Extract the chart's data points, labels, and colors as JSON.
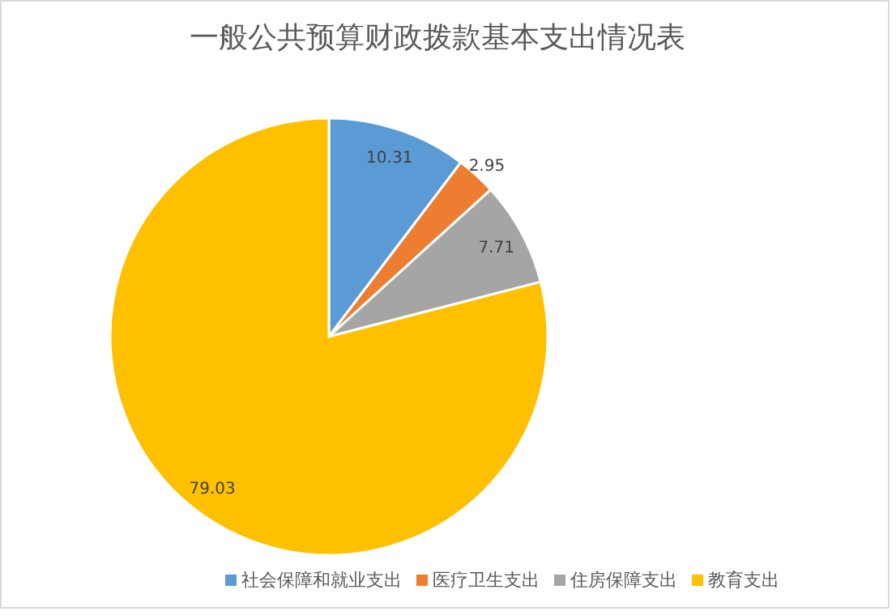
{
  "chart_data": {
    "type": "pie",
    "title": "一般公共预算财政拨款基本支出情况表",
    "categories": [
      "社会保障和就业支出",
      "医疗卫生支出",
      "住房保障支出",
      "教育支出"
    ],
    "values": [
      10.31,
      2.95,
      7.71,
      79.03
    ],
    "colors": [
      "#5b9bd5",
      "#ed7d31",
      "#a5a5a5",
      "#ffc000"
    ],
    "data_labels": true,
    "legend": "bottom"
  }
}
